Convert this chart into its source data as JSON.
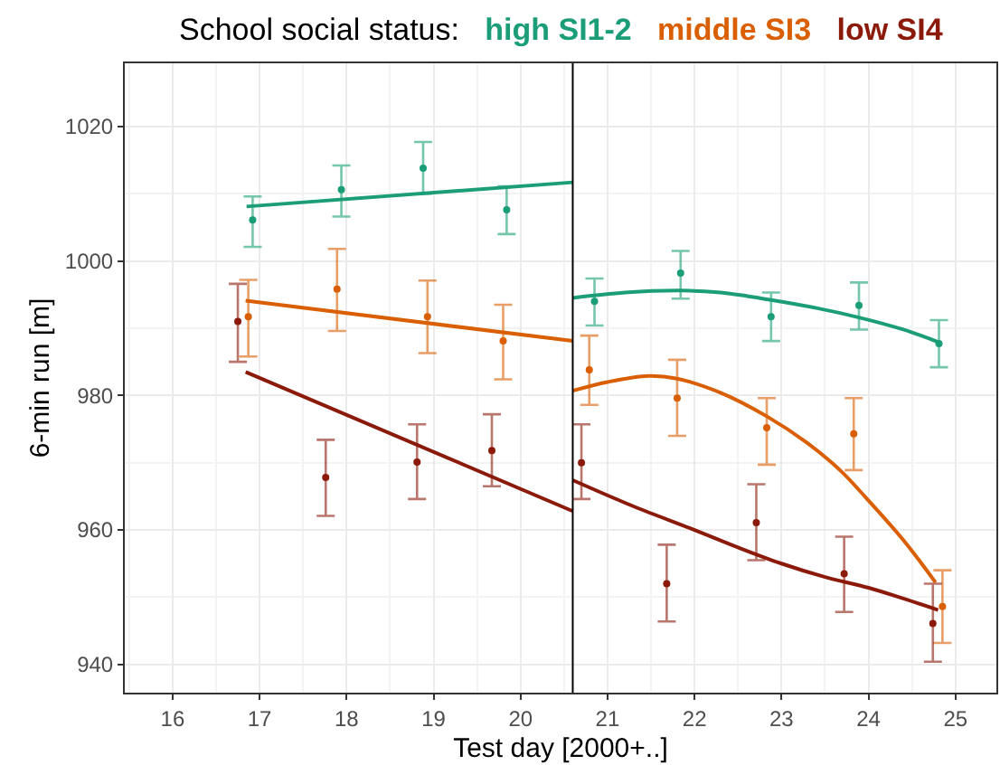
{
  "chart_data": {
    "type": "scatter",
    "legend_title": "School social status:",
    "legend": "top",
    "xlabel": "Test day [2000+..]",
    "ylabel": "6-min run [m]",
    "xlim": [
      15.45,
      25.47
    ],
    "ylim": [
      935.8,
      1029.4
    ],
    "xticks": [
      16,
      17,
      18,
      19,
      20,
      21,
      22,
      23,
      24,
      25
    ],
    "yticks": [
      940,
      960,
      980,
      1000,
      1020
    ],
    "grid": true,
    "ref_lines": [
      {
        "axis": "x",
        "value": 20.6,
        "color": "#000000"
      }
    ],
    "series": [
      {
        "name": "high SI1-2",
        "marker": "circle",
        "color": "#1b9e77",
        "x": [
          16.92,
          17.94,
          18.88,
          19.84,
          20.85,
          21.84,
          22.88,
          23.89,
          24.81
        ],
        "values": [
          1006.1,
          1010.6,
          1013.8,
          1007.6,
          994.0,
          998.2,
          991.7,
          993.4,
          987.7
        ],
        "errors": [
          [
            1002.1,
            1009.6
          ],
          [
            1006.6,
            1014.2
          ],
          [
            1010.0,
            1017.7
          ],
          [
            1004.0,
            1011.1
          ],
          [
            990.4,
            997.4
          ],
          [
            994.4,
            1001.5
          ],
          [
            988.1,
            995.3
          ],
          [
            989.8,
            996.8
          ],
          [
            984.2,
            991.2
          ]
        ]
      },
      {
        "name": "middle SI3",
        "marker": "circle",
        "color": "#d95f02",
        "x": [
          16.87,
          17.89,
          18.93,
          19.8,
          20.79,
          21.8,
          22.83,
          23.83,
          24.85
        ],
        "values": [
          991.7,
          995.8,
          991.7,
          988.1,
          983.8,
          979.6,
          975.2,
          974.3,
          948.6
        ],
        "errors": [
          [
            985.8,
            997.2
          ],
          [
            989.6,
            1001.8
          ],
          [
            986.3,
            997.1
          ],
          [
            982.4,
            993.5
          ],
          [
            978.6,
            988.9
          ],
          [
            974.0,
            985.3
          ],
          [
            969.7,
            979.6
          ],
          [
            968.9,
            979.6
          ],
          [
            943.2,
            954.0
          ]
        ]
      },
      {
        "name": "low SI4",
        "marker": "circle",
        "color": "#8b1a0a",
        "x": [
          16.75,
          17.76,
          18.81,
          19.67,
          20.7,
          21.68,
          22.71,
          23.72,
          24.74
        ],
        "values": [
          991.0,
          967.8,
          970.1,
          971.8,
          970.0,
          952.0,
          961.1,
          953.5,
          946.1
        ],
        "errors": [
          [
            985.0,
            996.6
          ],
          [
            962.1,
            973.4
          ],
          [
            964.6,
            975.7
          ],
          [
            966.5,
            977.2
          ],
          [
            964.6,
            975.7
          ],
          [
            946.4,
            957.8
          ],
          [
            955.5,
            966.8
          ],
          [
            947.8,
            959.0
          ],
          [
            940.4,
            952.0
          ]
        ]
      },
      {
        "type": "line",
        "color": "#1b9e77",
        "x": [
          16.85,
          20.6
        ],
        "values": [
          1008.1,
          1011.7
        ]
      },
      {
        "type": "line",
        "color": "#1b9e77",
        "x": [
          20.6,
          21.2,
          21.84,
          22.3,
          22.88,
          23.4,
          23.89,
          24.4,
          24.81
        ],
        "values": [
          994.5,
          995.3,
          995.6,
          995.3,
          994.2,
          993.0,
          991.6,
          989.8,
          987.9
        ]
      },
      {
        "type": "line",
        "color": "#d95f02",
        "x": [
          16.84,
          20.6
        ],
        "values": [
          994.1,
          988.1
        ]
      },
      {
        "type": "line",
        "color": "#d95f02",
        "x": [
          20.6,
          21.0,
          21.47,
          21.8,
          22.3,
          22.83,
          23.3,
          23.68,
          23.97,
          24.4,
          24.77
        ],
        "values": [
          980.7,
          982.0,
          982.9,
          982.5,
          980.4,
          976.9,
          972.9,
          968.8,
          964.8,
          958.5,
          952.2
        ]
      },
      {
        "type": "line",
        "color": "#8b1a0a",
        "x": [
          16.84,
          20.6
        ],
        "values": [
          983.5,
          962.8
        ]
      },
      {
        "type": "line",
        "color": "#8b1a0a",
        "x": [
          20.6,
          21.3,
          22.0,
          22.5,
          23.0,
          23.5,
          24.0,
          24.4,
          24.8
        ],
        "values": [
          967.4,
          963.5,
          960.0,
          957.4,
          955.0,
          953.0,
          951.4,
          949.8,
          948.1
        ]
      }
    ]
  }
}
